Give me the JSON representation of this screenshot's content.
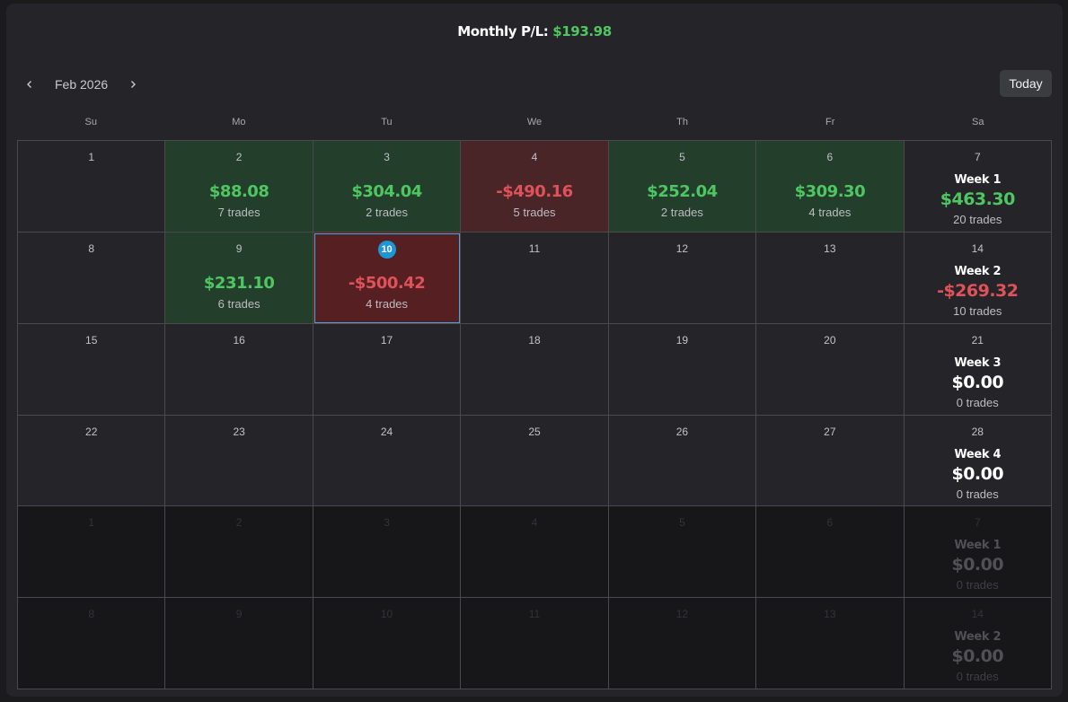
{
  "header": {
    "title_label": "Monthly P/L:",
    "title_value": "$193.98"
  },
  "nav": {
    "prev_icon": "chevron-left-icon",
    "month": "Feb 2026",
    "next_icon": "chevron-right-icon",
    "today_label": "Today"
  },
  "weekdays": [
    "Su",
    "Mo",
    "Tu",
    "We",
    "Th",
    "Fr",
    "Sa"
  ],
  "colors": {
    "profit": "#4ec762",
    "loss": "#e0525a",
    "selected_border": "#4aa6da",
    "today_badge": "#1e96d6"
  },
  "rows": [
    {
      "days": [
        {
          "day": "1",
          "state": "empty"
        },
        {
          "day": "2",
          "state": "pos",
          "pl": "$88.08",
          "trades": "7 trades"
        },
        {
          "day": "3",
          "state": "pos",
          "pl": "$304.04",
          "trades": "2 trades"
        },
        {
          "day": "4",
          "state": "neg",
          "pl": "-$490.16",
          "trades": "5 trades"
        },
        {
          "day": "5",
          "state": "pos",
          "pl": "$252.04",
          "trades": "2 trades"
        },
        {
          "day": "6",
          "state": "pos",
          "pl": "$309.30",
          "trades": "4 trades"
        }
      ],
      "week": {
        "day": "7",
        "label": "Week 1",
        "pl": "$463.30",
        "trades": "20 trades",
        "tone": "green",
        "out": false
      }
    },
    {
      "days": [
        {
          "day": "8",
          "state": "empty"
        },
        {
          "day": "9",
          "state": "pos",
          "pl": "$231.10",
          "trades": "6 trades"
        },
        {
          "day": "10",
          "state": "sel",
          "pl": "-$500.42",
          "trades": "4 trades",
          "today": true
        },
        {
          "day": "11",
          "state": "empty"
        },
        {
          "day": "12",
          "state": "empty"
        },
        {
          "day": "13",
          "state": "empty"
        }
      ],
      "week": {
        "day": "14",
        "label": "Week 2",
        "pl": "-$269.32",
        "trades": "10 trades",
        "tone": "red",
        "out": false
      }
    },
    {
      "days": [
        {
          "day": "15",
          "state": "empty"
        },
        {
          "day": "16",
          "state": "empty"
        },
        {
          "day": "17",
          "state": "empty"
        },
        {
          "day": "18",
          "state": "empty"
        },
        {
          "day": "19",
          "state": "empty"
        },
        {
          "day": "20",
          "state": "empty"
        }
      ],
      "week": {
        "day": "21",
        "label": "Week 3",
        "pl": "$0.00",
        "trades": "0 trades",
        "tone": "zero",
        "out": false
      }
    },
    {
      "days": [
        {
          "day": "22",
          "state": "empty"
        },
        {
          "day": "23",
          "state": "empty"
        },
        {
          "day": "24",
          "state": "empty"
        },
        {
          "day": "25",
          "state": "empty"
        },
        {
          "day": "26",
          "state": "empty"
        },
        {
          "day": "27",
          "state": "empty"
        }
      ],
      "week": {
        "day": "28",
        "label": "Week 4",
        "pl": "$0.00",
        "trades": "0 trades",
        "tone": "zero",
        "out": false
      }
    },
    {
      "days": [
        {
          "day": "1",
          "state": "out"
        },
        {
          "day": "2",
          "state": "out"
        },
        {
          "day": "3",
          "state": "out"
        },
        {
          "day": "4",
          "state": "out"
        },
        {
          "day": "5",
          "state": "out"
        },
        {
          "day": "6",
          "state": "out"
        }
      ],
      "week": {
        "day": "7",
        "label": "Week 1",
        "pl": "$0.00",
        "trades": "0 trades",
        "tone": "zero",
        "out": true
      }
    },
    {
      "days": [
        {
          "day": "8",
          "state": "out"
        },
        {
          "day": "9",
          "state": "out"
        },
        {
          "day": "10",
          "state": "out"
        },
        {
          "day": "11",
          "state": "out"
        },
        {
          "day": "12",
          "state": "out"
        },
        {
          "day": "13",
          "state": "out"
        }
      ],
      "week": {
        "day": "14",
        "label": "Week 2",
        "pl": "$0.00",
        "trades": "0 trades",
        "tone": "zero",
        "out": true
      }
    }
  ]
}
